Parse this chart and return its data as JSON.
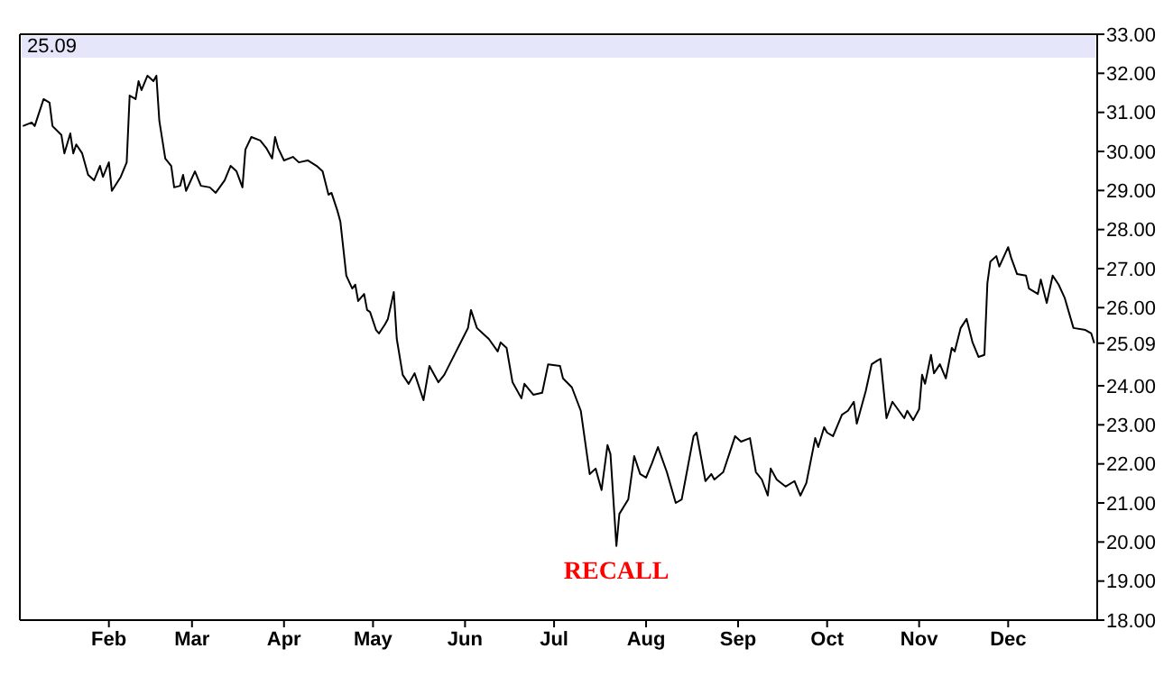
{
  "chart_data": {
    "type": "line",
    "annotations": [
      "25.09",
      {
        "text": "RECALL",
        "x": "--07-22",
        "y": 19.9
      }
    ],
    "x": [
      "--01-03",
      "--01-06",
      "--01-07",
      "--01-10",
      "--01-12",
      "--01-13",
      "--01-16",
      "--01-17",
      "--01-19",
      "--01-20",
      "--01-21",
      "--01-23",
      "--01-25",
      "--01-27",
      "--01-29",
      "--01-30",
      "--02-01",
      "--02-02",
      "--02-05",
      "--02-07",
      "--02-08",
      "--02-10",
      "--02-11",
      "--02-12",
      "--02-14",
      "--02-16",
      "--02-17",
      "--02-18",
      "--02-20",
      "--02-22",
      "--02-23",
      "--02-25",
      "--02-26",
      "--02-27",
      "--03-02",
      "--03-04",
      "--03-07",
      "--03-09",
      "--03-12",
      "--03-14",
      "--03-16",
      "--03-18",
      "--03-19",
      "--03-21",
      "--03-24",
      "--03-26",
      "--03-28",
      "--03-29",
      "--03-30",
      "--04-01",
      "--04-04",
      "--04-06",
      "--04-09",
      "--04-12",
      "--04-14",
      "--04-16",
      "--04-17",
      "--04-19",
      "--04-20",
      "--04-22",
      "--04-24",
      "--04-25",
      "--04-26",
      "--04-28",
      "--04-29",
      "--04-30",
      "--05-02",
      "--05-03",
      "--05-05",
      "--05-06",
      "--05-08",
      "--05-09",
      "--05-11",
      "--05-13",
      "--05-15",
      "--05-18",
      "--05-20",
      "--05-23",
      "--05-25",
      "--05-29",
      "--06-02",
      "--06-03",
      "--06-05",
      "--06-07",
      "--06-09",
      "--06-12",
      "--06-13",
      "--06-15",
      "--06-17",
      "--06-20",
      "--06-21",
      "--06-24",
      "--06-27",
      "--06-29",
      "--07-03",
      "--07-04",
      "--07-07",
      "--07-10",
      "--07-13",
      "--07-15",
      "--07-17",
      "--07-19",
      "--07-20",
      "--07-22",
      "--07-23",
      "--07-26",
      "--07-28",
      "--07-30",
      "--08-01",
      "--08-03",
      "--08-05",
      "--08-08",
      "--08-11",
      "--08-13",
      "--08-17",
      "--08-18",
      "--08-21",
      "--08-23",
      "--08-24",
      "--08-27",
      "--08-29",
      "--08-31",
      "--09-02",
      "--09-05",
      "--09-07",
      "--09-09",
      "--09-11",
      "--09-12",
      "--09-14",
      "--09-17",
      "--09-20",
      "--09-22",
      "--09-24",
      "--09-27",
      "--09-28",
      "--09-30",
      "--10-01",
      "--10-03",
      "--10-06",
      "--10-08",
      "--10-10",
      "--10-11",
      "--10-14",
      "--10-16",
      "--10-18",
      "--10-19",
      "--10-21",
      "--10-23",
      "--10-27",
      "--10-28",
      "--10-30",
      "--11-01",
      "--11-02",
      "--11-03",
      "--11-05",
      "--11-06",
      "--11-08",
      "--11-10",
      "--11-12",
      "--11-13",
      "--11-15",
      "--11-17",
      "--11-19",
      "--11-21",
      "--11-23",
      "--11-24",
      "--11-25",
      "--11-27",
      "--11-28",
      "--12-01",
      "--12-02",
      "--12-04",
      "--12-07",
      "--12-08",
      "--12-11",
      "--12-12",
      "--12-14",
      "--12-16",
      "--12-18",
      "--12-20",
      "--12-23",
      "--12-27",
      "--12-29",
      "--12-30"
    ],
    "series": [
      {
        "color": "#000000",
        "values": [
          30.65,
          30.74,
          30.65,
          31.34,
          31.25,
          30.65,
          30.42,
          29.95,
          30.46,
          29.95,
          30.18,
          29.95,
          29.4,
          29.26,
          29.63,
          29.35,
          29.72,
          28.99,
          29.35,
          29.72,
          31.43,
          31.34,
          31.8,
          31.57,
          31.94,
          31.8,
          31.94,
          30.78,
          29.82,
          29.63,
          29.08,
          29.12,
          29.4,
          28.99,
          29.49,
          29.12,
          29.08,
          28.94,
          29.26,
          29.63,
          29.49,
          29.08,
          30.05,
          30.37,
          30.28,
          30.09,
          29.82,
          30.37,
          30.09,
          29.77,
          29.86,
          29.72,
          29.77,
          29.63,
          29.49,
          28.89,
          28.94,
          28.48,
          28.2,
          26.82,
          26.49,
          26.59,
          26.17,
          26.35,
          25.94,
          25.89,
          25.43,
          25.34,
          25.57,
          25.71,
          26.4,
          25.2,
          24.28,
          24.05,
          24.32,
          23.63,
          24.51,
          24.09,
          24.28,
          24.88,
          25.48,
          25.94,
          25.48,
          25.34,
          25.2,
          24.88,
          25.11,
          24.97,
          24.09,
          23.68,
          24.05,
          23.77,
          23.82,
          24.55,
          24.51,
          24.19,
          23.96,
          23.36,
          21.74,
          21.88,
          21.33,
          22.48,
          22.25,
          19.9,
          20.72,
          21.09,
          22.2,
          21.74,
          21.65,
          22.02,
          22.43,
          21.79,
          21.0,
          21.09,
          22.71,
          22.8,
          21.56,
          21.74,
          21.6,
          21.79,
          22.25,
          22.71,
          22.57,
          22.66,
          21.79,
          21.6,
          21.19,
          21.88,
          21.6,
          21.42,
          21.56,
          21.19,
          21.51,
          22.66,
          22.43,
          22.94,
          22.8,
          22.71,
          23.26,
          23.36,
          23.59,
          23.03,
          23.86,
          24.55,
          24.65,
          24.69,
          23.17,
          23.59,
          23.17,
          23.36,
          23.12,
          23.4,
          24.28,
          24.05,
          24.79,
          24.32,
          24.55,
          24.19,
          24.97,
          24.88,
          25.48,
          25.71,
          25.11,
          24.74,
          24.79,
          26.63,
          27.18,
          27.32,
          27.05,
          27.55,
          27.28,
          26.86,
          26.82,
          26.49,
          26.35,
          26.72,
          26.12,
          26.82,
          26.59,
          26.26,
          25.48,
          25.43,
          25.34,
          25.09
        ]
      }
    ],
    "xlim": [
      "--01-02",
      "--12-31"
    ],
    "xticks": [
      {
        "value": "--02-01",
        "label": "Feb"
      },
      {
        "value": "--03-01",
        "label": "Mar"
      },
      {
        "value": "--04-01",
        "label": "Apr"
      },
      {
        "value": "--05-01",
        "label": "May"
      },
      {
        "value": "--06-01",
        "label": "Jun"
      },
      {
        "value": "--07-01",
        "label": "Jul"
      },
      {
        "value": "--08-01",
        "label": "Aug"
      },
      {
        "value": "--09-01",
        "label": "Sep"
      },
      {
        "value": "--10-01",
        "label": "Oct"
      },
      {
        "value": "--11-01",
        "label": "Nov"
      },
      {
        "value": "--12-01",
        "label": "Dec"
      }
    ],
    "ylim": [
      18,
      33
    ],
    "yticks": [
      {
        "value": 18,
        "label": "18.00"
      },
      {
        "value": 19,
        "label": "19.00"
      },
      {
        "value": 20,
        "label": "20.00"
      },
      {
        "value": 21,
        "label": "21.00"
      },
      {
        "value": 22,
        "label": "22.00"
      },
      {
        "value": 23,
        "label": "23.00"
      },
      {
        "value": 24,
        "label": "24.00"
      },
      {
        "value": 25.09,
        "label": "25.09"
      },
      {
        "value": 26,
        "label": "26.00"
      },
      {
        "value": 27,
        "label": "27.00"
      },
      {
        "value": 28,
        "label": "28.00"
      },
      {
        "value": 29,
        "label": "29.00"
      },
      {
        "value": 30,
        "label": "30.00"
      },
      {
        "value": 31,
        "label": "31.00"
      },
      {
        "value": 32,
        "label": "32.00"
      },
      {
        "value": 33,
        "label": "33.00"
      }
    ],
    "grid": false,
    "legend": false,
    "marker": "none",
    "line_style": "solid"
  }
}
